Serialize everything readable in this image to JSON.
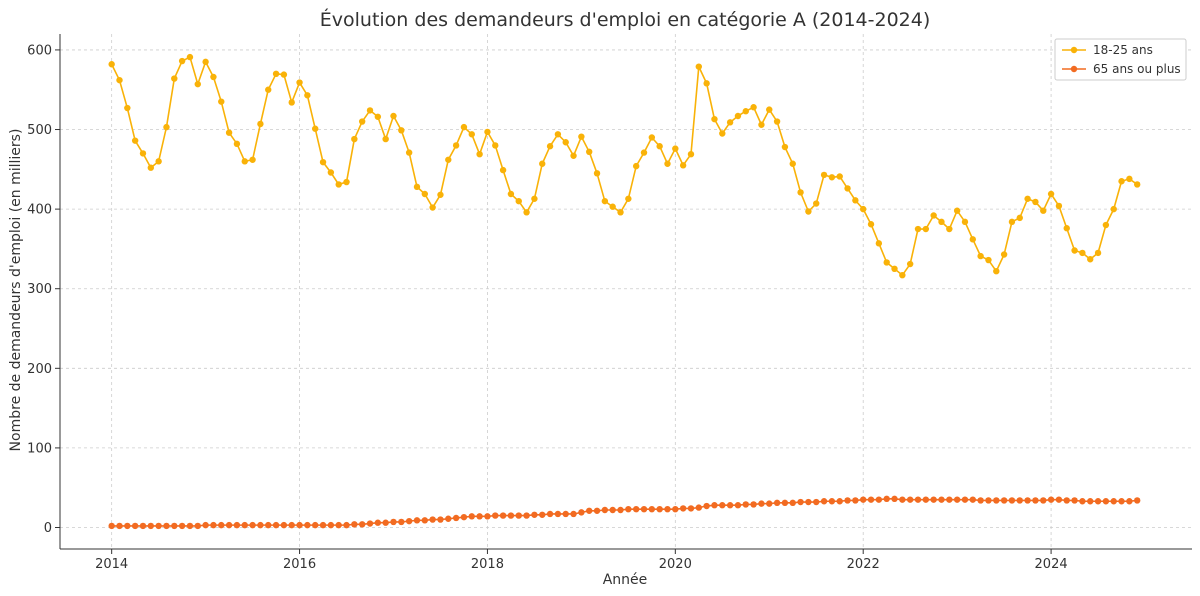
{
  "chart_data": {
    "type": "line",
    "title": "Évolution des demandeurs d'emploi en catégorie A (2014-2024)",
    "xlabel": "Année",
    "ylabel": "Nombre de demandeurs d'emploi (en milliers)",
    "xlim": [
      2013.45,
      2025.5
    ],
    "ylim": [
      -27,
      620
    ],
    "x_ticks": [
      2014,
      2016,
      2018,
      2020,
      2022,
      2024
    ],
    "y_ticks": [
      0,
      100,
      200,
      300,
      400,
      500,
      600
    ],
    "grid": true,
    "legend_position": "top-right",
    "x_start": 2014,
    "x_step_months": 1,
    "series": [
      {
        "name": "18-25 ans",
        "color": "#f9b208",
        "values": [
          582,
          562,
          527,
          486,
          470,
          452,
          460,
          503,
          564,
          586,
          591,
          557,
          585,
          566,
          535,
          496,
          482,
          460,
          462,
          507,
          550,
          570,
          569,
          534,
          559,
          543,
          501,
          459,
          446,
          431,
          434,
          488,
          510,
          524,
          516,
          488,
          517,
          499,
          471,
          428,
          419,
          402,
          418,
          462,
          480,
          503,
          494,
          469,
          497,
          480,
          449,
          419,
          410,
          396,
          413,
          457,
          479,
          494,
          484,
          467,
          491,
          472,
          445,
          410,
          403,
          396,
          413,
          454,
          471,
          490,
          479,
          457,
          476,
          455,
          469,
          579,
          558,
          513,
          495,
          509,
          517,
          523,
          528,
          506,
          525,
          510,
          478,
          457,
          421,
          397,
          407,
          443,
          440,
          441,
          426,
          411,
          400,
          381,
          357,
          333,
          325,
          317,
          331,
          375,
          375,
          392,
          384,
          375,
          398,
          384,
          362,
          341,
          336,
          322,
          343,
          384,
          389,
          413,
          409,
          398,
          419,
          404,
          376,
          348,
          345,
          337,
          345,
          380,
          400,
          435,
          438,
          431
        ]
      },
      {
        "name": "65 ans ou plus",
        "color": "#f26b21",
        "values": [
          2,
          2,
          2,
          2,
          2,
          2,
          2,
          2,
          2,
          2,
          2,
          2,
          3,
          3,
          3,
          3,
          3,
          3,
          3,
          3,
          3,
          3,
          3,
          3,
          3,
          3,
          3,
          3,
          3,
          3,
          3,
          4,
          4,
          5,
          6,
          6,
          7,
          7,
          8,
          9,
          9,
          10,
          10,
          11,
          12,
          13,
          14,
          14,
          14,
          15,
          15,
          15,
          15,
          15,
          16,
          16,
          17,
          17,
          17,
          17,
          19,
          21,
          21,
          22,
          22,
          22,
          23,
          23,
          23,
          23,
          23,
          23,
          23,
          24,
          24,
          25,
          27,
          28,
          28,
          28,
          28,
          29,
          29,
          30,
          30,
          31,
          31,
          31,
          32,
          32,
          32,
          33,
          33,
          33,
          34,
          34,
          35,
          35,
          35,
          36,
          36,
          35,
          35,
          35,
          35,
          35,
          35,
          35,
          35,
          35,
          35,
          34,
          34,
          34,
          34,
          34,
          34,
          34,
          34,
          34,
          35,
          35,
          34,
          34,
          33,
          33,
          33,
          33,
          33,
          33,
          33,
          34
        ]
      }
    ]
  }
}
